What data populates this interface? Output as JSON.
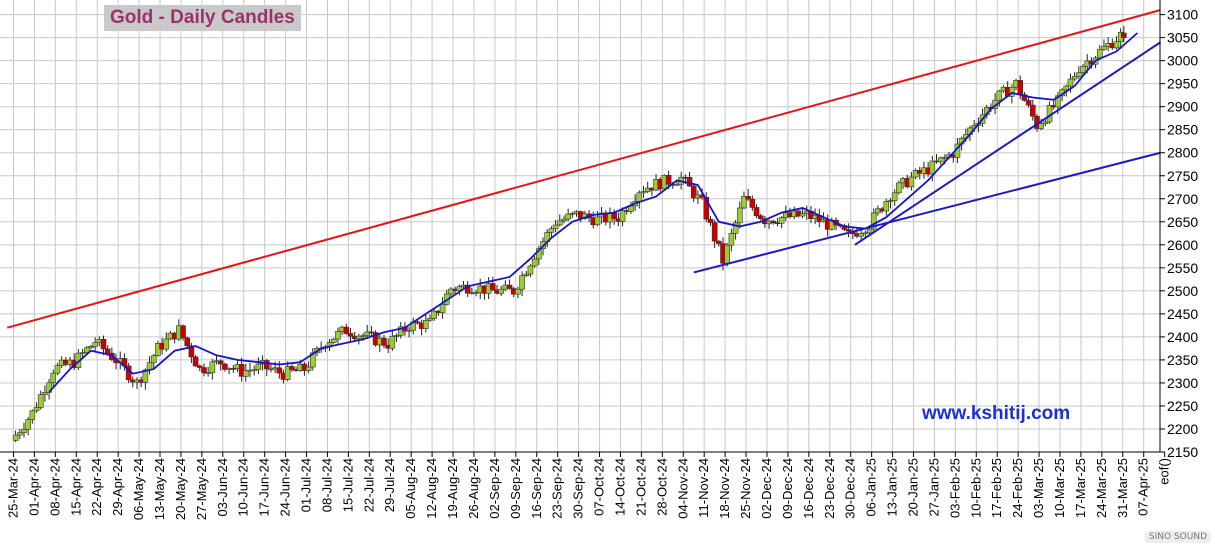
{
  "title": "Gold - Daily Candles",
  "watermark": "www.kshitij.com",
  "badge": "SINO SOUND",
  "colors": {
    "up": "#9acd32",
    "down": "#cc0000",
    "ma": "#1414cc",
    "trend_red": "#ee1111",
    "trend_blue": "#1a1acc",
    "grid": "#c8c8c8"
  },
  "chart_data": {
    "type": "candlestick",
    "title": "Gold - Daily Candles",
    "ylim": [
      2150,
      3110
    ],
    "y_ticks": [
      2150,
      2200,
      2250,
      2300,
      2350,
      2400,
      2450,
      2500,
      2550,
      2600,
      2650,
      2700,
      2750,
      2800,
      2850,
      2900,
      2950,
      3000,
      3050,
      3100
    ],
    "x_tick_labels": [
      "25-Mar-24",
      "01-Apr-24",
      "08-Apr-24",
      "15-Apr-24",
      "22-Apr-24",
      "29-Apr-24",
      "06-May-24",
      "13-May-24",
      "20-May-24",
      "27-May-24",
      "03-Jun-24",
      "10-Jun-24",
      "17-Jun-24",
      "24-Jun-24",
      "01-Jul-24",
      "08-Jul-24",
      "15-Jul-24",
      "22-Jul-24",
      "29-Jul-24",
      "05-Aug-24",
      "12-Aug-24",
      "19-Aug-24",
      "26-Aug-24",
      "02-Sep-24",
      "09-Sep-24",
      "16-Sep-24",
      "23-Sep-24",
      "30-Sep-24",
      "07-Oct-24",
      "14-Oct-24",
      "21-Oct-24",
      "28-Oct-24",
      "04-Nov-24",
      "11-Nov-24",
      "18-Nov-24",
      "25-Nov-24",
      "02-Dec-24",
      "09-Dec-24",
      "16-Dec-24",
      "23-Dec-24",
      "30-Dec-24",
      "06-Jan-25",
      "13-Jan-25",
      "20-Jan-25",
      "27-Jan-25",
      "03-Feb-25",
      "10-Feb-25",
      "17-Feb-25",
      "24-Feb-25",
      "03-Mar-25",
      "10-Mar-25",
      "17-Mar-25",
      "24-Mar-25",
      "31-Mar-25",
      "07-Apr-25",
      "eof()"
    ],
    "weekly_closes": [
      2235,
      2330,
      2345,
      2390,
      2350,
      2300,
      2375,
      2415,
      2330,
      2345,
      2325,
      2335,
      2320,
      2330,
      2390,
      2415,
      2400,
      2385,
      2425,
      2430,
      2505,
      2510,
      2500,
      2500,
      2580,
      2650,
      2665,
      2655,
      2660,
      2720,
      2735,
      2745,
      2690,
      2565,
      2700,
      2655,
      2660,
      2665,
      2645,
      2620,
      2645,
      2710,
      2745,
      2770,
      2800,
      2865,
      2915,
      2950,
      2860,
      2910,
      2985,
      3020,
      3055
    ],
    "last_candle": {
      "open": 3050,
      "high": 3075,
      "low": 3040,
      "close": 3060
    },
    "moving_average": [
      [
        2,
        2280
      ],
      [
        3,
        2330
      ],
      [
        4,
        2370
      ],
      [
        5,
        2360
      ],
      [
        6,
        2320
      ],
      [
        7,
        2330
      ],
      [
        8,
        2370
      ],
      [
        9,
        2380
      ],
      [
        10,
        2360
      ],
      [
        11,
        2350
      ],
      [
        12,
        2345
      ],
      [
        13,
        2340
      ],
      [
        14,
        2345
      ],
      [
        15,
        2375
      ],
      [
        16,
        2385
      ],
      [
        17,
        2395
      ],
      [
        18,
        2410
      ],
      [
        19,
        2420
      ],
      [
        20,
        2450
      ],
      [
        21,
        2480
      ],
      [
        22,
        2510
      ],
      [
        23,
        2520
      ],
      [
        24,
        2530
      ],
      [
        25,
        2570
      ],
      [
        26,
        2615
      ],
      [
        27,
        2650
      ],
      [
        28,
        2665
      ],
      [
        29,
        2670
      ],
      [
        30,
        2690
      ],
      [
        31,
        2705
      ],
      [
        32,
        2740
      ],
      [
        33,
        2730
      ],
      [
        34,
        2650
      ],
      [
        35,
        2640
      ],
      [
        36,
        2650
      ],
      [
        37,
        2670
      ],
      [
        38,
        2680
      ],
      [
        39,
        2660
      ],
      [
        40,
        2640
      ],
      [
        41,
        2635
      ],
      [
        42,
        2660
      ],
      [
        43,
        2700
      ],
      [
        44,
        2740
      ],
      [
        45,
        2790
      ],
      [
        46,
        2840
      ],
      [
        47,
        2895
      ],
      [
        48,
        2930
      ],
      [
        49,
        2920
      ],
      [
        50,
        2915
      ],
      [
        51,
        2945
      ],
      [
        52,
        3000
      ],
      [
        53,
        3020
      ],
      [
        54,
        3060
      ]
    ],
    "trendlines": [
      {
        "color": "red",
        "from": [
          -0.3,
          2420
        ],
        "to": [
          54.8,
          3110
        ]
      },
      {
        "color": "blue",
        "from": [
          32.5,
          2540
        ],
        "to": [
          54.8,
          2800
        ]
      },
      {
        "color": "blue",
        "from": [
          40.2,
          2600
        ],
        "to": [
          54.8,
          3040
        ]
      }
    ],
    "grid": true
  }
}
